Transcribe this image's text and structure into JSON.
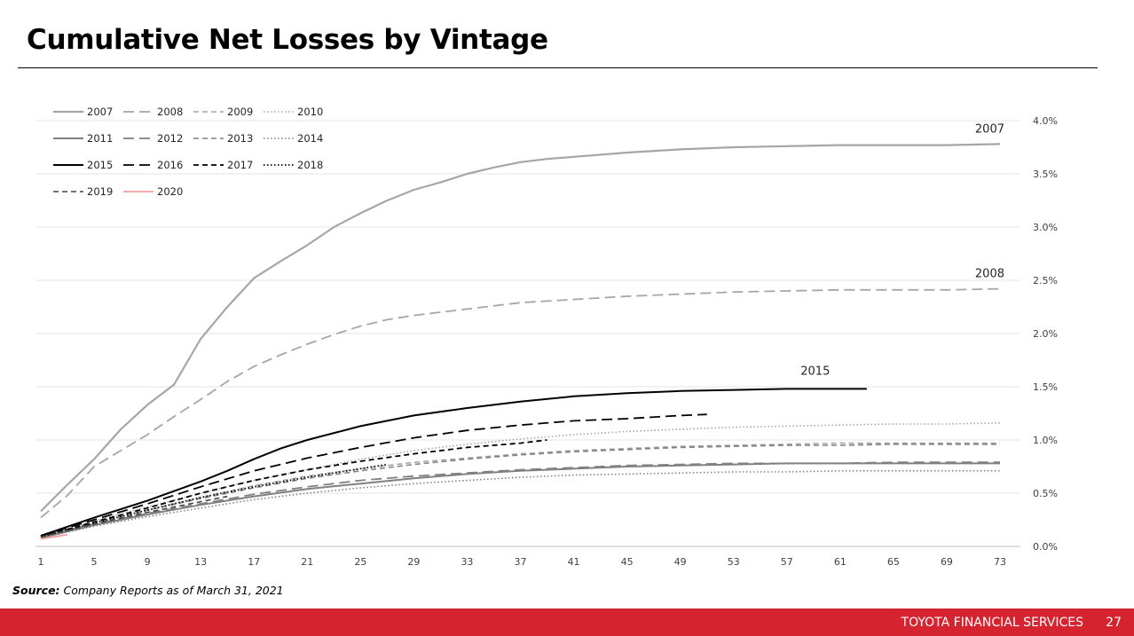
{
  "slide": {
    "title": "Cumulative Net Losses by Vintage",
    "source_label": "Source:",
    "source_text": " Company Reports as of March 31, 2021",
    "footer_company": "TOYOTA FINANCIAL SERVICES",
    "page_number": "27",
    "accent_color": "#d5232f"
  },
  "chart_data": {
    "type": "line",
    "title": "",
    "xlabel": "",
    "ylabel": "",
    "x_range": [
      1,
      73
    ],
    "x_ticks": [
      1,
      5,
      9,
      13,
      17,
      21,
      25,
      29,
      33,
      37,
      41,
      45,
      49,
      53,
      57,
      61,
      65,
      69,
      73
    ],
    "ylim": [
      0,
      0.04
    ],
    "y_ticks": [
      0,
      0.005,
      0.01,
      0.015,
      0.02,
      0.025,
      0.03,
      0.035,
      0.04
    ],
    "y_tick_labels": [
      "0.0%",
      "0.5%",
      "1.0%",
      "1.5%",
      "2.0%",
      "2.5%",
      "3.0%",
      "3.5%",
      "4.0%"
    ],
    "y_axis_position": "right",
    "grid": "horizontal",
    "legend_position": "top-left",
    "legend_columns": 4,
    "annotations": [
      "2007",
      "2008",
      "2015"
    ],
    "series": [
      {
        "name": "2007",
        "color": "#a6a6a6",
        "dash": "solid",
        "width": 2.2,
        "label": "2007",
        "points": [
          [
            1,
            0.0033
          ],
          [
            3,
            0.0058
          ],
          [
            5,
            0.0082
          ],
          [
            7,
            0.011
          ],
          [
            9,
            0.0133
          ],
          [
            11,
            0.0152
          ],
          [
            13,
            0.0195
          ],
          [
            15,
            0.0225
          ],
          [
            17,
            0.0252
          ],
          [
            19,
            0.0268
          ],
          [
            21,
            0.0283
          ],
          [
            23,
            0.03
          ],
          [
            25,
            0.0313
          ],
          [
            27,
            0.0325
          ],
          [
            29,
            0.0335
          ],
          [
            31,
            0.0342
          ],
          [
            33,
            0.035
          ],
          [
            35,
            0.0356
          ],
          [
            37,
            0.0361
          ],
          [
            39,
            0.0364
          ],
          [
            41,
            0.0366
          ],
          [
            45,
            0.037
          ],
          [
            49,
            0.0373
          ],
          [
            53,
            0.0375
          ],
          [
            57,
            0.0376
          ],
          [
            61,
            0.0377
          ],
          [
            65,
            0.0377
          ],
          [
            69,
            0.0377
          ],
          [
            73,
            0.0378
          ]
        ]
      },
      {
        "name": "2008",
        "color": "#a6a6a6",
        "dash": "dashlong",
        "width": 1.8,
        "label": "2008",
        "points": [
          [
            1,
            0.0027
          ],
          [
            3,
            0.0048
          ],
          [
            5,
            0.0075
          ],
          [
            7,
            0.009
          ],
          [
            9,
            0.0105
          ],
          [
            11,
            0.0122
          ],
          [
            13,
            0.0138
          ],
          [
            15,
            0.0155
          ],
          [
            17,
            0.0169
          ],
          [
            19,
            0.018
          ],
          [
            21,
            0.019
          ],
          [
            23,
            0.0199
          ],
          [
            25,
            0.0207
          ],
          [
            27,
            0.0213
          ],
          [
            29,
            0.0217
          ],
          [
            31,
            0.022
          ],
          [
            33,
            0.0223
          ],
          [
            37,
            0.0229
          ],
          [
            41,
            0.0232
          ],
          [
            45,
            0.0235
          ],
          [
            49,
            0.0237
          ],
          [
            53,
            0.0239
          ],
          [
            57,
            0.024
          ],
          [
            61,
            0.0241
          ],
          [
            65,
            0.0241
          ],
          [
            69,
            0.0241
          ],
          [
            73,
            0.0242
          ]
        ]
      },
      {
        "name": "2009",
        "color": "#a6a6a6",
        "dash": "dash",
        "width": 1.6,
        "points": [
          [
            1,
            0.0009
          ],
          [
            5,
            0.0023
          ],
          [
            9,
            0.0034
          ],
          [
            13,
            0.0046
          ],
          [
            17,
            0.0057
          ],
          [
            21,
            0.0066
          ],
          [
            25,
            0.0073
          ],
          [
            29,
            0.0079
          ],
          [
            33,
            0.0083
          ],
          [
            37,
            0.0087
          ],
          [
            41,
            0.009
          ],
          [
            45,
            0.0092
          ],
          [
            49,
            0.0094
          ],
          [
            53,
            0.0095
          ],
          [
            57,
            0.0096
          ],
          [
            61,
            0.0097
          ],
          [
            65,
            0.0097
          ],
          [
            69,
            0.0097
          ],
          [
            73,
            0.0097
          ]
        ]
      },
      {
        "name": "2010",
        "color": "#a6a6a6",
        "dash": "dot",
        "width": 1.6,
        "points": [
          [
            1,
            0.0009
          ],
          [
            5,
            0.0024
          ],
          [
            9,
            0.0037
          ],
          [
            13,
            0.005
          ],
          [
            17,
            0.0062
          ],
          [
            21,
            0.0072
          ],
          [
            25,
            0.0082
          ],
          [
            29,
            0.009
          ],
          [
            33,
            0.0096
          ],
          [
            37,
            0.0101
          ],
          [
            41,
            0.0105
          ],
          [
            45,
            0.0108
          ],
          [
            49,
            0.011
          ],
          [
            53,
            0.0112
          ],
          [
            57,
            0.0113
          ],
          [
            61,
            0.0114
          ],
          [
            65,
            0.0115
          ],
          [
            69,
            0.0115
          ],
          [
            73,
            0.0116
          ]
        ]
      },
      {
        "name": "2011",
        "color": "#808080",
        "dash": "solid",
        "width": 2.0,
        "points": [
          [
            1,
            0.0008
          ],
          [
            5,
            0.002
          ],
          [
            9,
            0.003
          ],
          [
            13,
            0.0039
          ],
          [
            17,
            0.0047
          ],
          [
            21,
            0.0054
          ],
          [
            25,
            0.0059
          ],
          [
            29,
            0.0064
          ],
          [
            33,
            0.0068
          ],
          [
            37,
            0.0071
          ],
          [
            41,
            0.0073
          ],
          [
            45,
            0.0075
          ],
          [
            49,
            0.0076
          ],
          [
            53,
            0.0077
          ],
          [
            57,
            0.0078
          ],
          [
            61,
            0.0078
          ],
          [
            65,
            0.0078
          ],
          [
            69,
            0.0078
          ],
          [
            73,
            0.0078
          ]
        ]
      },
      {
        "name": "2012",
        "color": "#808080",
        "dash": "dashlong",
        "width": 1.8,
        "points": [
          [
            1,
            0.0009
          ],
          [
            5,
            0.0021
          ],
          [
            9,
            0.0031
          ],
          [
            13,
            0.004
          ],
          [
            17,
            0.0049
          ],
          [
            21,
            0.0056
          ],
          [
            25,
            0.0062
          ],
          [
            29,
            0.0066
          ],
          [
            33,
            0.0069
          ],
          [
            37,
            0.0072
          ],
          [
            41,
            0.0074
          ],
          [
            45,
            0.0076
          ],
          [
            49,
            0.0077
          ],
          [
            53,
            0.0078
          ],
          [
            57,
            0.0078
          ],
          [
            61,
            0.0078
          ],
          [
            65,
            0.0079
          ],
          [
            69,
            0.0079
          ],
          [
            73,
            0.0079
          ]
        ]
      },
      {
        "name": "2013",
        "color": "#808080",
        "dash": "dash",
        "width": 1.6,
        "points": [
          [
            1,
            0.0009
          ],
          [
            5,
            0.0022
          ],
          [
            9,
            0.0034
          ],
          [
            13,
            0.0045
          ],
          [
            17,
            0.0055
          ],
          [
            21,
            0.0064
          ],
          [
            25,
            0.0071
          ],
          [
            29,
            0.0077
          ],
          [
            33,
            0.0082
          ],
          [
            37,
            0.0086
          ],
          [
            41,
            0.0089
          ],
          [
            45,
            0.0091
          ],
          [
            49,
            0.0093
          ],
          [
            53,
            0.0094
          ],
          [
            57,
            0.0095
          ],
          [
            61,
            0.0095
          ],
          [
            65,
            0.0096
          ],
          [
            69,
            0.0096
          ],
          [
            73,
            0.0096
          ]
        ]
      },
      {
        "name": "2014",
        "color": "#808080",
        "dash": "dot",
        "width": 1.6,
        "points": [
          [
            1,
            0.0008
          ],
          [
            5,
            0.0019
          ],
          [
            9,
            0.0028
          ],
          [
            13,
            0.0036
          ],
          [
            17,
            0.0044
          ],
          [
            21,
            0.005
          ],
          [
            25,
            0.0055
          ],
          [
            29,
            0.0059
          ],
          [
            33,
            0.0062
          ],
          [
            37,
            0.0065
          ],
          [
            41,
            0.0067
          ],
          [
            45,
            0.0068
          ],
          [
            49,
            0.0069
          ],
          [
            53,
            0.007
          ],
          [
            57,
            0.007
          ],
          [
            61,
            0.0071
          ],
          [
            65,
            0.0071
          ],
          [
            69,
            0.0071
          ],
          [
            73,
            0.0071
          ]
        ]
      },
      {
        "name": "2015",
        "color": "#000000",
        "dash": "solid",
        "width": 2.0,
        "label": "2015",
        "points": [
          [
            1,
            0.001
          ],
          [
            5,
            0.0027
          ],
          [
            9,
            0.0043
          ],
          [
            13,
            0.0061
          ],
          [
            15,
            0.0071
          ],
          [
            17,
            0.0082
          ],
          [
            19,
            0.0092
          ],
          [
            21,
            0.01
          ],
          [
            25,
            0.0113
          ],
          [
            29,
            0.0123
          ],
          [
            33,
            0.013
          ],
          [
            37,
            0.0136
          ],
          [
            41,
            0.0141
          ],
          [
            45,
            0.0144
          ],
          [
            49,
            0.0146
          ],
          [
            53,
            0.0147
          ],
          [
            57,
            0.0148
          ],
          [
            61,
            0.0148
          ],
          [
            63,
            0.0148
          ]
        ]
      },
      {
        "name": "2016",
        "color": "#000000",
        "dash": "dashlong",
        "width": 1.8,
        "points": [
          [
            1,
            0.001
          ],
          [
            5,
            0.0025
          ],
          [
            9,
            0.004
          ],
          [
            13,
            0.0056
          ],
          [
            17,
            0.0071
          ],
          [
            21,
            0.0083
          ],
          [
            25,
            0.0093
          ],
          [
            29,
            0.0102
          ],
          [
            33,
            0.0109
          ],
          [
            37,
            0.0114
          ],
          [
            41,
            0.0118
          ],
          [
            45,
            0.012
          ],
          [
            49,
            0.0123
          ],
          [
            51,
            0.0124
          ]
        ]
      },
      {
        "name": "2017",
        "color": "#000000",
        "dash": "dash",
        "width": 1.8,
        "points": [
          [
            1,
            0.0009
          ],
          [
            5,
            0.0023
          ],
          [
            9,
            0.0036
          ],
          [
            13,
            0.005
          ],
          [
            17,
            0.0062
          ],
          [
            21,
            0.0072
          ],
          [
            25,
            0.008
          ],
          [
            29,
            0.0087
          ],
          [
            33,
            0.0093
          ],
          [
            37,
            0.0097
          ],
          [
            39,
            0.01
          ]
        ]
      },
      {
        "name": "2018",
        "color": "#000000",
        "dash": "dot",
        "width": 1.8,
        "points": [
          [
            1,
            0.0009
          ],
          [
            5,
            0.0022
          ],
          [
            9,
            0.0034
          ],
          [
            13,
            0.0046
          ],
          [
            17,
            0.0056
          ],
          [
            21,
            0.0065
          ],
          [
            25,
            0.0073
          ],
          [
            27,
            0.0077
          ]
        ]
      },
      {
        "name": "2019",
        "color": "#404040",
        "dash": "dash",
        "width": 1.6,
        "points": [
          [
            1,
            0.0009
          ],
          [
            5,
            0.0021
          ],
          [
            9,
            0.0032
          ],
          [
            13,
            0.0042
          ],
          [
            15,
            0.0047
          ]
        ]
      },
      {
        "name": "2020",
        "color": "#f4a09a",
        "dash": "solid",
        "width": 1.8,
        "points": [
          [
            1,
            0.0007
          ],
          [
            2,
            0.0009
          ],
          [
            3,
            0.0011
          ]
        ]
      }
    ]
  }
}
